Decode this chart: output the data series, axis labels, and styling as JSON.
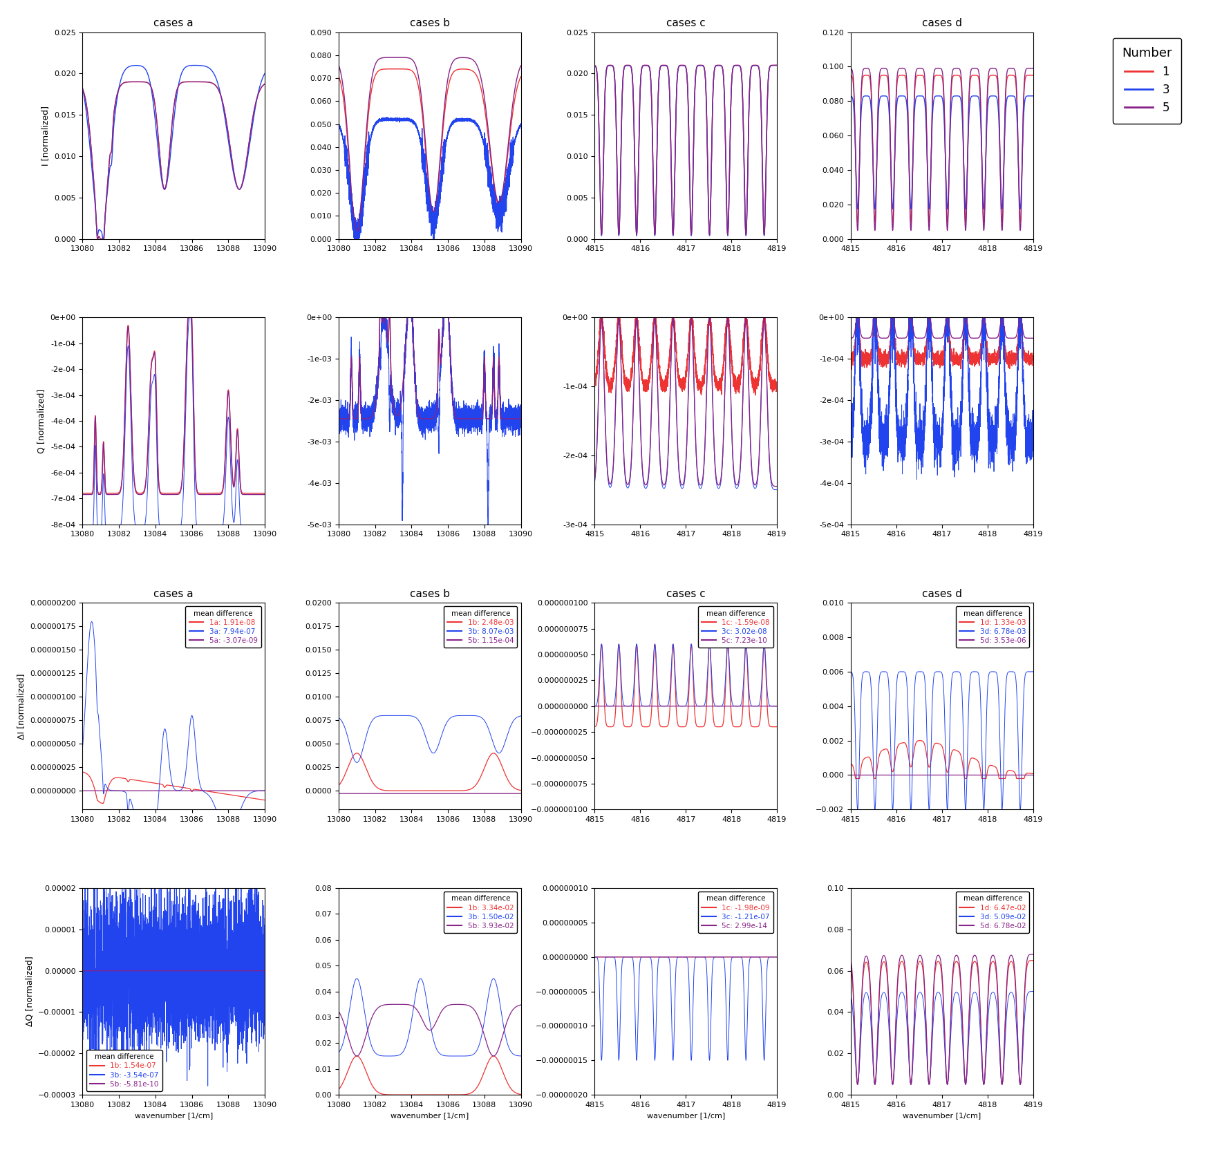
{
  "col_ab_xrange": [
    13080,
    13090
  ],
  "col_cd_xrange": [
    4815,
    4819
  ],
  "row1_ylims": {
    "a": [
      0.0,
      0.025
    ],
    "b": [
      0.0,
      0.09
    ],
    "c": [
      0.0,
      0.025
    ],
    "d": [
      0.0,
      0.12
    ]
  },
  "row2_ylims": {
    "a": [
      -0.0008,
      0.0
    ],
    "b": [
      -0.005,
      0.0
    ],
    "c": [
      -0.0003,
      0.0
    ],
    "d": [
      -0.0005,
      0.0
    ]
  },
  "row3_ylims": {
    "a": [
      -2e-07,
      2e-06
    ],
    "b": [
      -0.002,
      0.02
    ],
    "c": [
      -1e-07,
      1e-07
    ],
    "d": [
      -0.002,
      0.01
    ]
  },
  "row4_ylims": {
    "a": [
      -3e-05,
      2e-05
    ],
    "b": [
      0.0,
      0.08
    ],
    "c": [
      -2e-07,
      1e-07
    ],
    "d": [
      0.0,
      0.1
    ]
  },
  "colors": {
    "1": "#EE3333",
    "3": "#2244EE",
    "5": "#882288"
  },
  "ylabel_row1": "I [normalized]",
  "ylabel_row2": "Q [normalized]",
  "ylabel_row3": "ΔI [normalized]",
  "ylabel_row4": "ΔQ [normalized]",
  "xlabel": "wavenumber [1/cm]",
  "legend_title": "Number",
  "col_titles": [
    "cases a",
    "cases b",
    "cases c",
    "cases d"
  ],
  "annotations_row3": {
    "a": [
      "1a: 1.91e-08",
      "3a: 7.94e-07",
      "5a: -3.07e-09"
    ],
    "b": [
      "1b: 2.48e-03",
      "3b: 8.07e-03",
      "5b: 1.15e-04"
    ],
    "c": [
      "1c: -1.59e-08",
      "3c: 3.02e-08",
      "5c: 7.23e-10"
    ],
    "d": [
      "1d: 1.33e-03",
      "3d: 6.78e-03",
      "5d: 3.53e-06"
    ]
  },
  "annotations_row4": {
    "a": [
      "1b: 1.54e-07",
      "3b: -3.54e-07",
      "5b: -5.81e-10"
    ],
    "b": [
      "1b: 3.34e-02",
      "3b: 1.50e-02",
      "5b: 3.93e-02"
    ],
    "c": [
      "1c: -1.98e-09",
      "3c: -1.21e-07",
      "5c: 2.99e-14"
    ],
    "d": [
      "1d: 6.47e-02",
      "3d: 5.09e-02",
      "5d: 6.78e-02"
    ]
  },
  "annotation_header": "mean difference"
}
